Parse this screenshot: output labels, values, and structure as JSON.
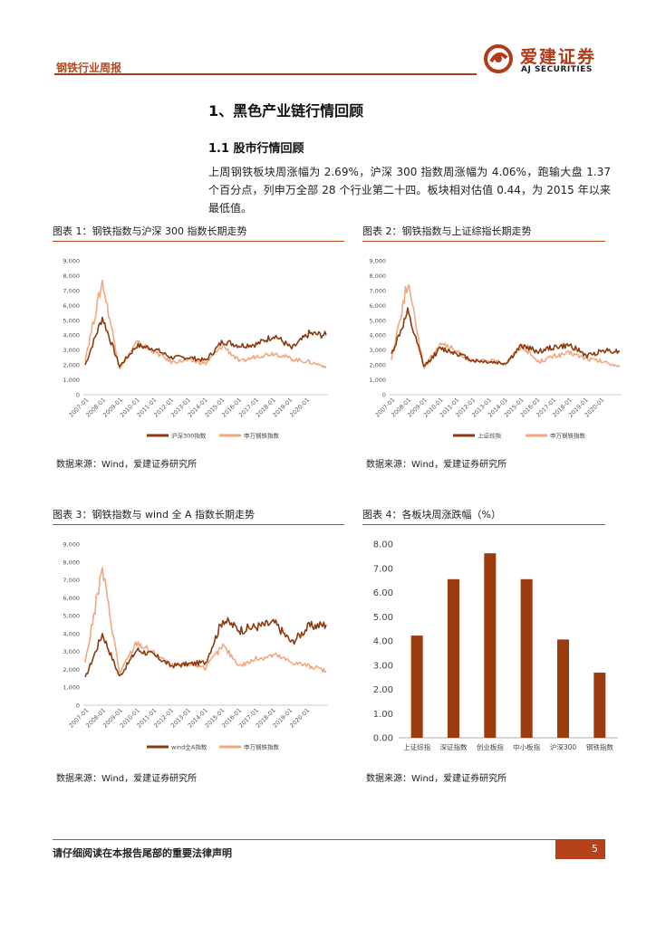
{
  "header": {
    "section_label": "钢铁行业周报",
    "logo_cn": "爱建证券",
    "logo_en": "AJ SECURITIES"
  },
  "heading1": "1、黑色产业链行情回顾",
  "heading2": "1.1 股市行情回顾",
  "paragraph": "上周钢铁板块周涨幅为 2.69%，沪深 300 指数周涨幅为 4.06%，跑输大盘 1.37 个百分点，列申万全部 28 个行业第二十四。板块相对估值 0.44，为 2015 年以来最低值。",
  "figures": [
    {
      "caption": "图表 1：钢铁指数与沪深 300 指数长期走势",
      "source": "数据来源：Wind，爱建证券研究所",
      "legend": [
        "沪深300指数",
        "申万钢铁指数"
      ],
      "y_ticks": [
        "9,000",
        "8,000",
        "7,000",
        "6,000",
        "5,000",
        "4,000",
        "3,000",
        "2,000",
        "1,000",
        "0"
      ],
      "x_ticks": [
        "2007-01",
        "2008-01",
        "2009-01",
        "2010-01",
        "2011-01",
        "2012-01",
        "2013-01",
        "2014-01",
        "2015-01",
        "2016-01",
        "2017-01",
        "2018-01",
        "2019-01",
        "2020-01"
      ]
    },
    {
      "caption": "图表 2：钢铁指数与上证综指长期走势",
      "source": "数据来源：Wind，爱建证券研究所",
      "legend": [
        "上证综指",
        "申万钢铁指数"
      ],
      "y_ticks": [
        "9,000",
        "8,000",
        "7,000",
        "6,000",
        "5,000",
        "4,000",
        "3,000",
        "2,000",
        "1,000",
        "0"
      ],
      "x_ticks": [
        "2007-01",
        "2008-01",
        "2009-01",
        "2010-01",
        "2011-01",
        "2012-01",
        "2013-01",
        "2014-01",
        "2015-01",
        "2016-01",
        "2017-01",
        "2018-01",
        "2019-01",
        "2020-01"
      ]
    },
    {
      "caption": "图表 3：钢铁指数与 wind 全 A 指数长期走势",
      "source": "数据来源：Wind，爱建证券研究所",
      "legend": [
        "wind全A指数",
        "申万钢铁指数"
      ],
      "y_ticks": [
        "9,000",
        "8,000",
        "7,000",
        "6,000",
        "5,000",
        "4,000",
        "3,000",
        "2,000",
        "1,000",
        "0"
      ],
      "x_ticks": [
        "2007-01",
        "2008-01",
        "2009-01",
        "2010-01",
        "2011-01",
        "2012-01",
        "2013-01",
        "2014-01",
        "2015-01",
        "2016-01",
        "2017-01",
        "2018-01",
        "2019-01",
        "2020-01"
      ]
    },
    {
      "caption": "图表 4：各板块周涨跌幅（%）",
      "source": "数据来源：Wind，爱建证券研究所",
      "y_ticks": [
        "8.00",
        "7.00",
        "6.00",
        "5.00",
        "4.00",
        "3.00",
        "2.00",
        "1.00",
        "0.00"
      ]
    }
  ],
  "chart_data": [
    {
      "type": "line",
      "title": "钢铁指数与沪深 300 指数长期走势",
      "ylim": [
        0,
        9000
      ],
      "x": [
        "2007-01",
        "2008-01",
        "2009-01",
        "2010-01",
        "2011-01",
        "2012-01",
        "2013-01",
        "2014-01",
        "2015-01",
        "2016-01",
        "2017-01",
        "2018-01",
        "2019-01",
        "2020-01",
        "2020-06"
      ],
      "series": [
        {
          "name": "沪深300指数",
          "color": "#8b3a0f",
          "values": [
            2000,
            5200,
            1900,
            3300,
            3100,
            2500,
            2500,
            2300,
            3600,
            3300,
            3400,
            4000,
            3100,
            4100,
            4000
          ]
        },
        {
          "name": "申万钢铁指数",
          "color": "#f2a77e",
          "values": [
            2400,
            7600,
            1800,
            3500,
            2900,
            2200,
            2300,
            2100,
            3300,
            2200,
            2600,
            2800,
            2400,
            2200,
            1900
          ]
        }
      ]
    },
    {
      "type": "line",
      "title": "钢铁指数与上证综指长期走势",
      "ylim": [
        0,
        9000
      ],
      "x": [
        "2007-01",
        "2008-01",
        "2009-01",
        "2010-01",
        "2011-01",
        "2012-01",
        "2013-01",
        "2014-01",
        "2015-01",
        "2016-01",
        "2017-01",
        "2018-01",
        "2019-01",
        "2020-01",
        "2020-06"
      ],
      "series": [
        {
          "name": "上证综指",
          "color": "#8b3a0f",
          "values": [
            2700,
            5500,
            1900,
            3100,
            2800,
            2300,
            2200,
            2100,
            3300,
            2900,
            3200,
            3300,
            2600,
            3000,
            2900
          ]
        },
        {
          "name": "申万钢铁指数",
          "color": "#f2a77e",
          "values": [
            2400,
            7600,
            1800,
            3500,
            2900,
            2200,
            2300,
            2100,
            3300,
            2200,
            2600,
            2800,
            2400,
            2200,
            1900
          ]
        }
      ]
    },
    {
      "type": "line",
      "title": "钢铁指数与 wind 全 A 指数长期走势",
      "ylim": [
        0,
        9000
      ],
      "x": [
        "2007-01",
        "2008-01",
        "2009-01",
        "2010-01",
        "2011-01",
        "2012-01",
        "2013-01",
        "2014-01",
        "2015-01",
        "2016-01",
        "2017-01",
        "2018-01",
        "2019-01",
        "2020-01",
        "2020-06"
      ],
      "series": [
        {
          "name": "wind全A指数",
          "color": "#8b3a0f",
          "values": [
            1500,
            4000,
            1600,
            3100,
            2800,
            2200,
            2300,
            2400,
            4800,
            4200,
            4400,
            4600,
            3500,
            4400,
            4500
          ]
        },
        {
          "name": "申万钢铁指数",
          "color": "#f2a77e",
          "values": [
            2400,
            7600,
            1800,
            3500,
            2900,
            2200,
            2300,
            2100,
            3300,
            2200,
            2600,
            2800,
            2400,
            2200,
            1900
          ]
        }
      ]
    },
    {
      "type": "bar",
      "title": "各板块周涨跌幅（%）",
      "categories": [
        "上证综指",
        "深证指数",
        "创业板指",
        "中小板指",
        "沪深300",
        "钢铁指数"
      ],
      "values": [
        4.22,
        6.55,
        7.62,
        6.55,
        4.06,
        2.69
      ],
      "ylim": [
        0,
        8
      ],
      "color": "#9c3a10"
    }
  ],
  "footer": {
    "disclaimer": "请仔细阅读在本报告尾部的重要法律声明",
    "page_number": "5"
  }
}
